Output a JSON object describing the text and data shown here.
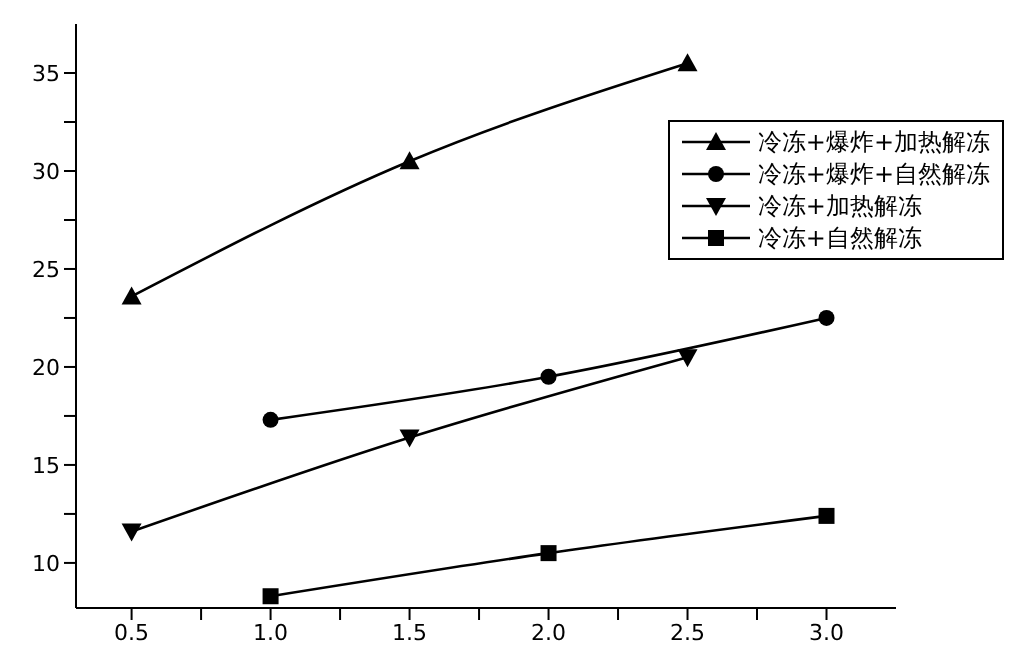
{
  "chart_data": {
    "type": "line",
    "xlim": [
      0.3,
      3.25
    ],
    "xticks": [
      0.5,
      {
        "value": 0.75,
        "label": null
      },
      {
        "value": 1.0,
        "label": "1.0"
      },
      {
        "value": 1.25,
        "label": null
      },
      1.5,
      {
        "value": 1.75,
        "label": null
      },
      {
        "value": 2.0,
        "label": "2.0"
      },
      {
        "value": 2.25,
        "label": null
      },
      2.5,
      {
        "value": 2.75,
        "label": null
      },
      {
        "value": 3.0,
        "label": "3.0"
      }
    ],
    "ylim": [
      7.7,
      37.5
    ],
    "yticks": [
      10,
      {
        "value": 12.5,
        "label": null
      },
      15,
      {
        "value": 17.5,
        "label": null
      },
      20,
      {
        "value": 22.5,
        "label": null
      },
      25,
      {
        "value": 27.5,
        "label": null
      },
      30,
      {
        "value": 32.5,
        "label": null
      },
      35
    ],
    "grid": false,
    "legend": "top right",
    "line_style": "solid",
    "series": [
      {
        "name": "冷冻+爆炸+加热解冻",
        "color": "#000000",
        "marker": "triangle",
        "x": [
          0.5,
          1.5,
          2.5
        ],
        "values": [
          23.6,
          30.5,
          35.5
        ]
      },
      {
        "name": "冷冻+爆炸+自然解冻",
        "color": "#000000",
        "marker": "circle",
        "x": [
          1.0,
          2.0,
          3.0
        ],
        "values": [
          17.3,
          19.5,
          22.5
        ]
      },
      {
        "name": "冷冻+加热解冻",
        "color": "#000000",
        "marker": "triangle-down",
        "x": [
          0.5,
          1.5,
          2.5
        ],
        "values": [
          11.6,
          16.4,
          20.5
        ]
      },
      {
        "name": "冷冻+自然解冻",
        "color": "#000000",
        "marker": "square",
        "x": [
          1.0,
          2.0,
          3.0
        ],
        "values": [
          8.3,
          10.5,
          12.4
        ]
      }
    ]
  }
}
